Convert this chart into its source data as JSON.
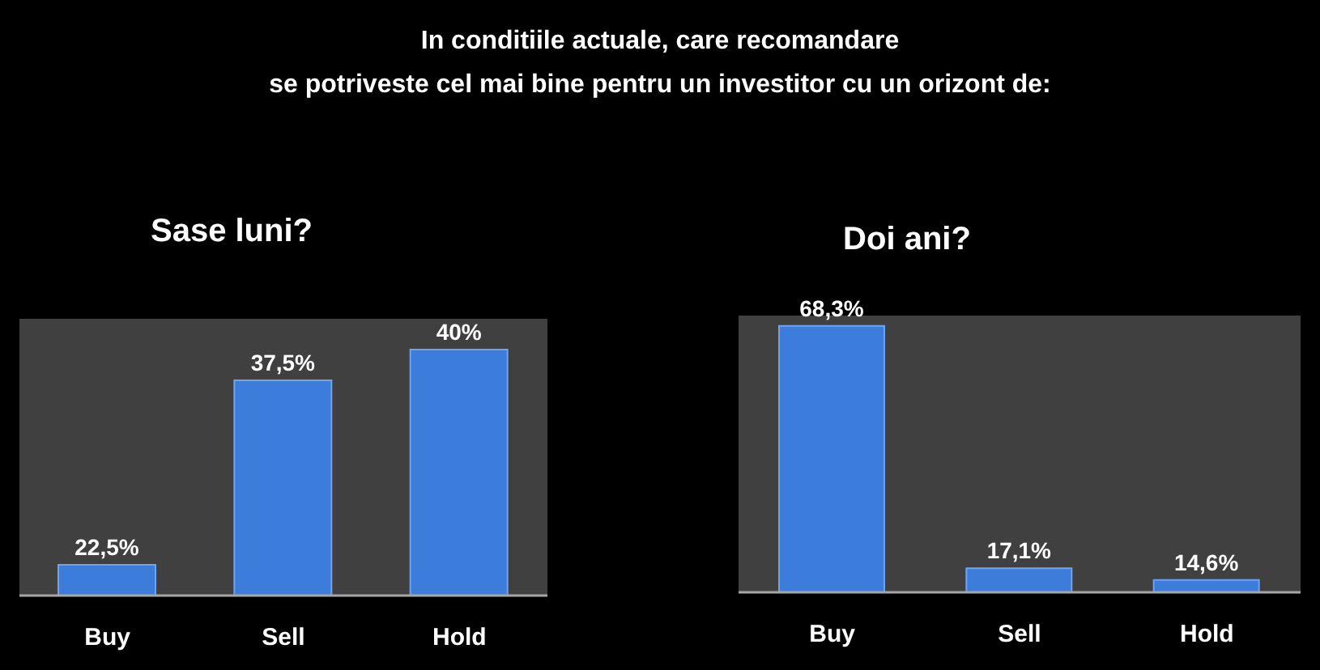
{
  "chart_data": [
    {
      "type": "other",
      "title": "In conditiile actuale, care recomandare\nse potriveste cel mai bine pentru un investitor cu un orizont de:"
    },
    {
      "type": "bar",
      "title": "Sase luni?",
      "categories": [
        "Buy",
        "Sell",
        "Hold"
      ],
      "values": [
        22.5,
        37.5,
        40
      ],
      "value_labels": [
        "22,5%",
        "37,5%",
        "40%"
      ],
      "color": "#3c7ddb",
      "ylim": [
        20,
        42.5
      ],
      "tick_labels": "x"
    },
    {
      "type": "bar",
      "title": "Doi ani?",
      "categories": [
        "Buy",
        "Sell",
        "Hold"
      ],
      "values": [
        68.3,
        17.1,
        14.6
      ],
      "value_labels": [
        "68,3%",
        "17,1%",
        "14,6%"
      ],
      "color": "#3c7ddb",
      "ylim": [
        12,
        70.5
      ],
      "tick_labels": "x"
    }
  ]
}
